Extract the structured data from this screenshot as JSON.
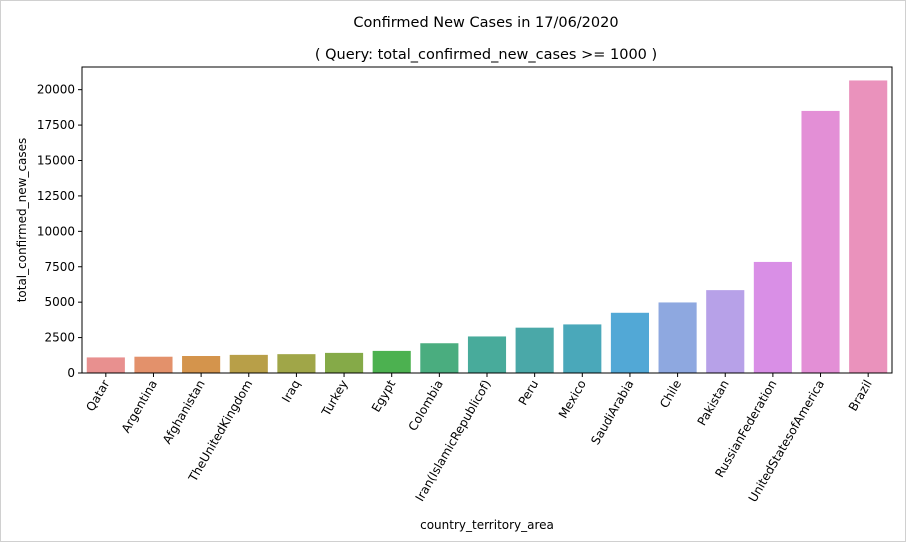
{
  "chart_data": {
    "type": "bar",
    "title": "Confirmed New Cases in 17/06/2020",
    "subtitle": "( Query: total_confirmed_new_cases >= 1000 )",
    "xlabel": "country_territory_area",
    "ylabel": "total_confirmed_new_cases",
    "ylim": [
      0,
      21600
    ],
    "yticks": [
      0,
      2500,
      5000,
      7500,
      10000,
      12500,
      15000,
      17500,
      20000
    ],
    "grid": false,
    "categories": [
      "Qatar",
      "Argentina",
      "Afghanistan",
      "TheUnitedKingdom",
      "Iraq",
      "Turkey",
      "Egypt",
      "Colombia",
      "Iran(IslamicRepublicof)",
      "Peru",
      "Mexico",
      "SaudiArabia",
      "Chile",
      "Pakistan",
      "RussianFederation",
      "UnitedStatesofAmerica",
      "Brazil"
    ],
    "values": [
      1100,
      1150,
      1200,
      1280,
      1330,
      1420,
      1560,
      2100,
      2580,
      3200,
      3430,
      4250,
      4980,
      5850,
      7840,
      18500,
      20650
    ],
    "colors": [
      "#e8908f",
      "#e3916b",
      "#d4944c",
      "#b89f48",
      "#a0a648",
      "#85aa48",
      "#4cb150",
      "#4aad7f",
      "#48ab9b",
      "#4aa8a8",
      "#4aa8ba",
      "#52a8d6",
      "#8ea8e0",
      "#b7a1e8",
      "#d98fe6",
      "#e38fd6",
      "#ea92bc"
    ]
  }
}
